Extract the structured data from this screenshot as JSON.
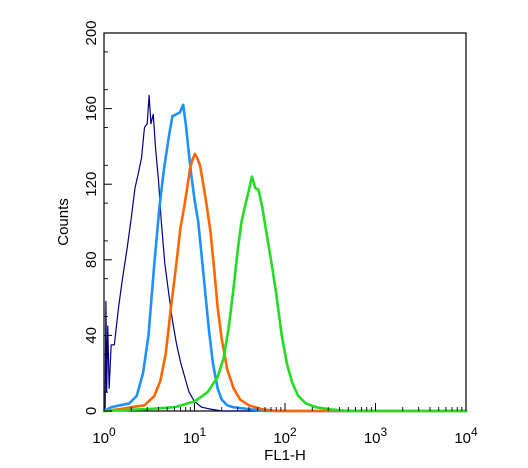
{
  "chart_data": {
    "type": "line",
    "title": "",
    "xlabel": "FL1-H",
    "ylabel": "Counts",
    "xscale": "log",
    "xlim": [
      1,
      10000
    ],
    "ylim": [
      0,
      200
    ],
    "grid": false,
    "x_ticks": [
      {
        "base": "10",
        "exp": "0",
        "value": 1
      },
      {
        "base": "10",
        "exp": "1",
        "value": 10
      },
      {
        "base": "10",
        "exp": "2",
        "value": 100
      },
      {
        "base": "10",
        "exp": "3",
        "value": 1000
      },
      {
        "base": "10",
        "exp": "4",
        "value": 10000
      }
    ],
    "y_ticks": [
      "0",
      "40",
      "80",
      "120",
      "160",
      "200"
    ],
    "series": [
      {
        "color": "#000080",
        "points": [
          [
            1.0,
            0
          ],
          [
            1.03,
            2
          ],
          [
            1.05,
            58
          ],
          [
            1.07,
            10
          ],
          [
            1.1,
            45
          ],
          [
            1.14,
            12
          ],
          [
            1.2,
            35
          ],
          [
            1.3,
            35
          ],
          [
            1.45,
            55
          ],
          [
            1.6,
            70
          ],
          [
            1.8,
            86
          ],
          [
            2.0,
            102
          ],
          [
            2.2,
            118
          ],
          [
            2.4,
            126
          ],
          [
            2.6,
            134
          ],
          [
            2.8,
            150
          ],
          [
            3.0,
            152
          ],
          [
            3.15,
            167
          ],
          [
            3.3,
            152
          ],
          [
            3.5,
            157
          ],
          [
            3.7,
            140
          ],
          [
            4.0,
            122
          ],
          [
            4.3,
            100
          ],
          [
            4.7,
            78
          ],
          [
            5.2,
            62
          ],
          [
            5.7,
            48
          ],
          [
            6.3,
            36
          ],
          [
            7.0,
            26
          ],
          [
            7.8,
            18
          ],
          [
            8.7,
            10
          ],
          [
            10,
            5
          ],
          [
            12,
            2
          ],
          [
            15,
            1
          ],
          [
            20,
            0
          ],
          [
            30,
            0
          ],
          [
            10000,
            0
          ]
        ]
      },
      {
        "color": "#1e90ff",
        "points": [
          [
            1.0,
            0
          ],
          [
            1.2,
            2
          ],
          [
            1.5,
            3
          ],
          [
            1.9,
            4
          ],
          [
            2.3,
            8
          ],
          [
            2.7,
            20
          ],
          [
            3.1,
            40
          ],
          [
            3.6,
            78
          ],
          [
            4.1,
            108
          ],
          [
            4.6,
            128
          ],
          [
            5.2,
            145
          ],
          [
            5.7,
            156
          ],
          [
            6.3,
            157
          ],
          [
            6.9,
            158
          ],
          [
            7.5,
            162
          ],
          [
            8.0,
            152
          ],
          [
            8.6,
            138
          ],
          [
            9.2,
            125
          ],
          [
            10,
            112
          ],
          [
            11,
            100
          ],
          [
            12,
            82
          ],
          [
            13,
            65
          ],
          [
            14.5,
            42
          ],
          [
            16,
            25
          ],
          [
            18,
            12
          ],
          [
            20,
            6
          ],
          [
            23,
            3
          ],
          [
            27,
            2
          ],
          [
            40,
            1
          ],
          [
            60,
            0
          ],
          [
            10000,
            0
          ]
        ]
      },
      {
        "color": "#ff6600",
        "points": [
          [
            1.0,
            0
          ],
          [
            1.5,
            1
          ],
          [
            2.0,
            2
          ],
          [
            2.8,
            3
          ],
          [
            3.6,
            8
          ],
          [
            4.2,
            16
          ],
          [
            4.8,
            30
          ],
          [
            5.5,
            55
          ],
          [
            6.2,
            75
          ],
          [
            7.0,
            97
          ],
          [
            7.7,
            108
          ],
          [
            8.3,
            118
          ],
          [
            8.9,
            128
          ],
          [
            9.5,
            133
          ],
          [
            10.1,
            136
          ],
          [
            10.7,
            134
          ],
          [
            11.5,
            130
          ],
          [
            12.5,
            120
          ],
          [
            13.5,
            110
          ],
          [
            15,
            95
          ],
          [
            16.5,
            75
          ],
          [
            18,
            55
          ],
          [
            20,
            38
          ],
          [
            23,
            22
          ],
          [
            27,
            12
          ],
          [
            32,
            6
          ],
          [
            40,
            3
          ],
          [
            55,
            1
          ],
          [
            80,
            0
          ],
          [
            10000,
            0
          ]
        ]
      },
      {
        "color": "#22dd22",
        "points": [
          [
            1.0,
            0
          ],
          [
            3.0,
            1
          ],
          [
            6.0,
            2
          ],
          [
            10,
            5
          ],
          [
            14,
            10
          ],
          [
            18,
            18
          ],
          [
            21,
            28
          ],
          [
            24,
            45
          ],
          [
            27,
            65
          ],
          [
            30,
            85
          ],
          [
            33,
            100
          ],
          [
            36,
            108
          ],
          [
            40,
            117
          ],
          [
            43,
            124
          ],
          [
            47,
            118
          ],
          [
            51,
            117
          ],
          [
            56,
            108
          ],
          [
            62,
            95
          ],
          [
            70,
            80
          ],
          [
            80,
            62
          ],
          [
            92,
            40
          ],
          [
            105,
            25
          ],
          [
            120,
            15
          ],
          [
            140,
            8
          ],
          [
            170,
            4
          ],
          [
            220,
            2
          ],
          [
            300,
            1
          ],
          [
            500,
            0
          ],
          [
            10000,
            0
          ]
        ]
      }
    ]
  }
}
